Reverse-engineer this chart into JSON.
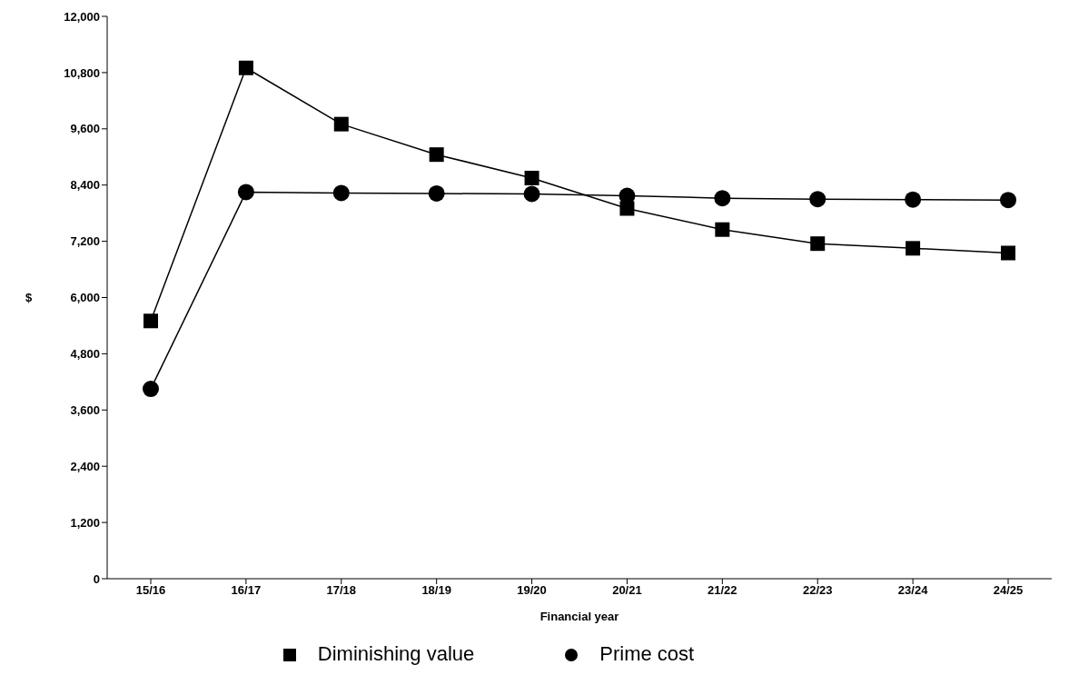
{
  "chart_data": {
    "type": "line",
    "xlabel": "Financial year",
    "ylabel": "$",
    "categories": [
      "15/16",
      "16/17",
      "17/18",
      "18/19",
      "19/20",
      "20/21",
      "21/22",
      "22/23",
      "23/24",
      "24/25"
    ],
    "series": [
      {
        "name": "Diminishing value",
        "color": "#000000",
        "marker": "square",
        "values": [
          5500,
          10900,
          9700,
          9050,
          8550,
          7900,
          7450,
          7150,
          7050,
          6950
        ]
      },
      {
        "name": "Prime cost",
        "color": "#000000",
        "marker": "circle",
        "values": [
          4050,
          8250,
          8230,
          8220,
          8210,
          8170,
          8120,
          8100,
          8090,
          8080
        ]
      }
    ],
    "ylim": [
      0,
      12000
    ],
    "yticks": [
      0,
      {
        "value": 1200,
        "label": "1,200"
      },
      {
        "value": 2400,
        "label": "2,400"
      },
      {
        "value": 3600,
        "label": "3,600"
      },
      {
        "value": 4800,
        "label": "4,800"
      },
      {
        "value": 6000,
        "label": "6,000"
      },
      {
        "value": 7200,
        "label": "7,200"
      },
      {
        "value": 8400,
        "label": "8,400"
      },
      {
        "value": 9600,
        "label": "9,600"
      },
      {
        "value": 10800,
        "label": "10,800"
      },
      {
        "value": 12000,
        "label": "12,000"
      }
    ],
    "grid": false,
    "legend": "bottom",
    "line_style": "solid"
  }
}
